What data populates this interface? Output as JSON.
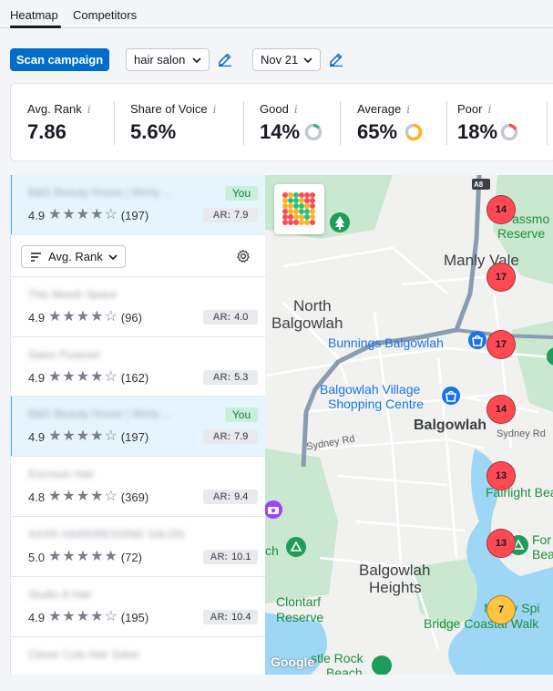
{
  "tabs": [
    {
      "label": "Heatmap",
      "active": true
    },
    {
      "label": "Competitors",
      "active": false
    }
  ],
  "toolbar": {
    "scan_label": "Scan campaign",
    "keyword": "hair salon",
    "date": "Nov 21"
  },
  "metrics": [
    {
      "label": "Avg. Rank",
      "value": "7.86"
    },
    {
      "label": "Share of Voice",
      "value": "5.6%"
    },
    {
      "label": "Good",
      "value": "14%",
      "fraction": 0.14,
      "color": "#27c27a"
    },
    {
      "label": "Average",
      "value": "65%",
      "fraction": 0.65,
      "color": "#ffb31a"
    },
    {
      "label": "Poor",
      "value": "18%",
      "fraction": 0.18,
      "color": "#ff4953"
    }
  ],
  "info_glyph": "i",
  "you_item": {
    "name": "B&G Beauty House | Worly ...",
    "badge": "You",
    "rating": "4.9",
    "stars": 4,
    "reviews": "(197)",
    "ar_label": "AR:",
    "ar": "7.9"
  },
  "sort": {
    "label": "Avg. Rank"
  },
  "list": [
    {
      "name": "This Mereh Space",
      "rating": "4.9",
      "stars": 4,
      "reviews": "(96)",
      "ar_label": "AR:",
      "ar": "4.0",
      "you": false
    },
    {
      "name": "Salon Purpose",
      "rating": "4.9",
      "stars": 4,
      "reviews": "(162)",
      "ar_label": "AR:",
      "ar": "5.3",
      "you": false
    },
    {
      "name": "B&G Beauty House | Worly ...",
      "rating": "4.9",
      "stars": 4,
      "reviews": "(197)",
      "ar_label": "AR:",
      "ar": "7.9",
      "you": true,
      "badge": "You"
    },
    {
      "name": "Ericnium Hair",
      "rating": "4.8",
      "stars": 4,
      "reviews": "(369)",
      "ar_label": "AR:",
      "ar": "9.4",
      "you": false
    },
    {
      "name": "AXXR HAIRDRESSING SALON",
      "rating": "5.0",
      "stars": 5,
      "reviews": "(72)",
      "ar_label": "AR:",
      "ar": "10.1",
      "you": false
    },
    {
      "name": "Studio 8 Hair",
      "rating": "4.9",
      "stars": 4,
      "reviews": "(195)",
      "ar_label": "AR:",
      "ar": "10.4",
      "you": false
    },
    {
      "name": "Clever Cuts Hair Salon",
      "rating": "",
      "stars": 0,
      "reviews": "",
      "ar_label": "",
      "ar": "",
      "you": false
    }
  ],
  "map": {
    "labels": {
      "manly_vale": "Manly Vale",
      "north_balgowlah_1": "North",
      "north_balgowlah_2": "Balgowlah",
      "bunnings": "Bunnings Balgowlah",
      "village_1": "Balgowlah Village",
      "village_2": "Shopping Centre",
      "balgowlah": "Balgowlah",
      "sydney_rd_1": "Sydney Rd",
      "sydney_rd_2": "Sydney Rd",
      "heights_1": "Balgowlah",
      "heights_2": "Heights",
      "clontarf_1": "Clontarf",
      "clontarf_2": "Reserve",
      "fairlight": "Fairlight Beac",
      "reserve": "Reserve",
      "assmo": "assmo",
      "a8": "A8",
      "manly_spit_1": "Manly Spi",
      "manly_spit_2": "Bridge Coastal Walk",
      "for": "For",
      "bea": "Bea",
      "ch": "ch",
      "castle_rock": "stle Rock",
      "beach": "Beach",
      "google": "Google"
    },
    "pins": [
      {
        "value": "14",
        "status": "poor"
      },
      {
        "value": "17",
        "status": "poor"
      },
      {
        "value": "17",
        "status": "poor"
      },
      {
        "value": "14",
        "status": "poor"
      },
      {
        "value": "13",
        "status": "poor"
      },
      {
        "value": "13",
        "status": "poor"
      },
      {
        "value": "7",
        "status": "average"
      }
    ]
  }
}
